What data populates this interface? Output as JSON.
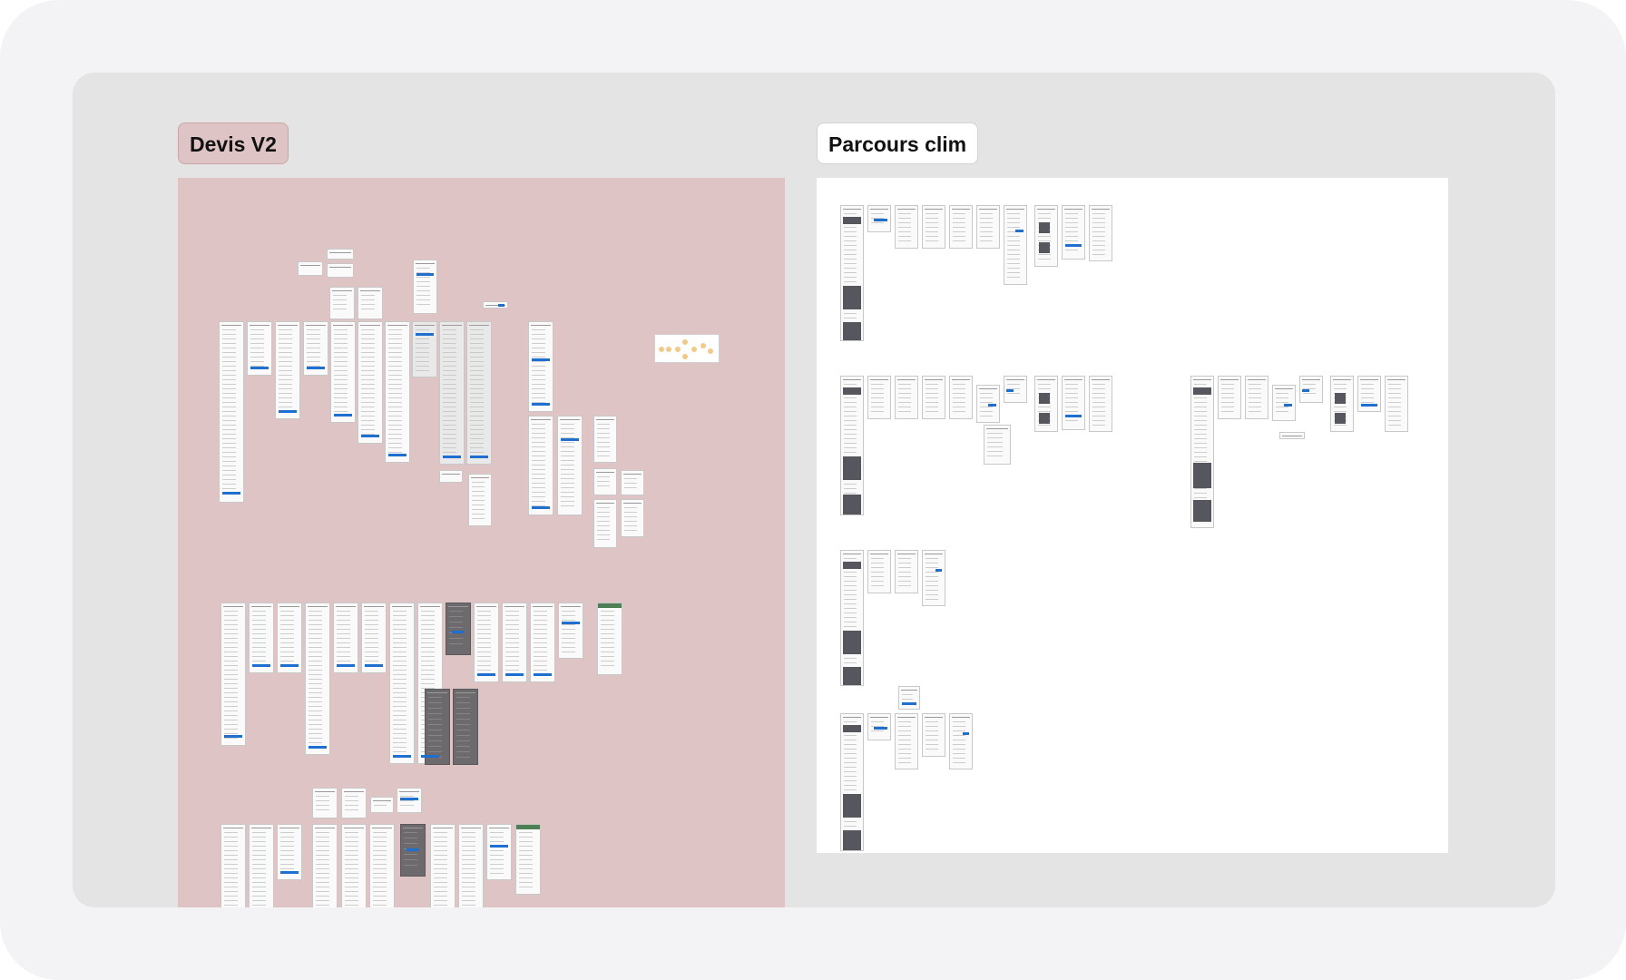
{
  "canvas": {
    "sections": [
      {
        "id": "devis",
        "title": "Devis V2",
        "background": "#dfc4c6"
      },
      {
        "id": "clim",
        "title": "Parcours clim",
        "background": "#ffffff"
      }
    ]
  },
  "colors": {
    "device_bg": "#f3f3f5",
    "canvas_bg": "#e4e4e4",
    "accent_blue": "#1f6fd1",
    "frame_dark": "#6c6a6d"
  }
}
